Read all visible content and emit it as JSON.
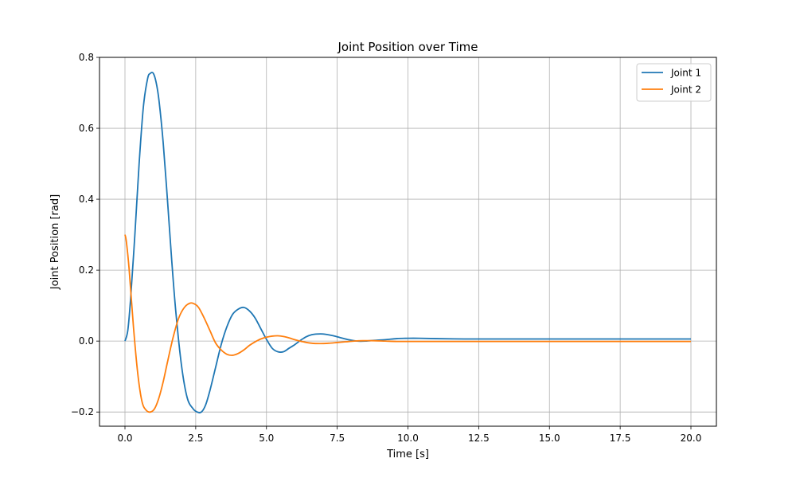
{
  "chart_data": {
    "type": "line",
    "title": "Joint Position over Time",
    "xlabel": "Time [s]",
    "ylabel": "Joint Position [rad]",
    "xlim": [
      -0.9,
      20.9
    ],
    "ylim": [
      -0.24,
      0.8
    ],
    "xticks": [
      0.0,
      2.5,
      5.0,
      7.5,
      10.0,
      12.5,
      15.0,
      17.5,
      20.0
    ],
    "xtick_labels": [
      "0.0",
      "2.5",
      "5.0",
      "7.5",
      "10.0",
      "12.5",
      "15.0",
      "17.5",
      "20.0"
    ],
    "yticks": [
      -0.2,
      0.0,
      0.2,
      0.4,
      0.6,
      0.8
    ],
    "ytick_labels": [
      "−0.2",
      "0.0",
      "0.2",
      "0.4",
      "0.6",
      "0.8"
    ],
    "grid": true,
    "legend_position": "top-right",
    "series": [
      {
        "name": "Joint 1",
        "color": "#1f77b4",
        "x": [
          0,
          0.1,
          0.2,
          0.35,
          0.5,
          0.65,
          0.8,
          0.9,
          1.0,
          1.1,
          1.2,
          1.35,
          1.5,
          1.65,
          1.8,
          2.0,
          2.2,
          2.4,
          2.55,
          2.7,
          2.85,
          3.0,
          3.2,
          3.4,
          3.6,
          3.8,
          4.0,
          4.2,
          4.4,
          4.6,
          4.8,
          5.0,
          5.2,
          5.4,
          5.6,
          5.8,
          6.0,
          6.2,
          6.4,
          6.6,
          6.8,
          7.0,
          7.3,
          7.6,
          7.9,
          8.2,
          8.5,
          8.8,
          9.2,
          9.6,
          10.0,
          10.4,
          11.0,
          12.0,
          13.0,
          14.0,
          16.0,
          18.0,
          20.0
        ],
        "y": [
          0.0,
          0.03,
          0.12,
          0.3,
          0.5,
          0.66,
          0.74,
          0.755,
          0.755,
          0.73,
          0.68,
          0.56,
          0.4,
          0.23,
          0.08,
          -0.07,
          -0.16,
          -0.19,
          -0.2,
          -0.2,
          -0.18,
          -0.14,
          -0.075,
          -0.01,
          0.04,
          0.075,
          0.09,
          0.095,
          0.085,
          0.065,
          0.035,
          0.005,
          -0.02,
          -0.03,
          -0.03,
          -0.02,
          -0.01,
          0.002,
          0.012,
          0.018,
          0.02,
          0.02,
          0.016,
          0.01,
          0.004,
          0.0,
          0.0,
          0.002,
          0.004,
          0.007,
          0.008,
          0.008,
          0.007,
          0.006,
          0.006,
          0.006,
          0.006,
          0.006,
          0.006
        ]
      },
      {
        "name": "Joint 2",
        "color": "#ff7f0e",
        "x": [
          0,
          0.05,
          0.15,
          0.3,
          0.45,
          0.6,
          0.75,
          0.9,
          1.05,
          1.2,
          1.35,
          1.5,
          1.7,
          1.9,
          2.1,
          2.3,
          2.45,
          2.6,
          2.8,
          3.0,
          3.2,
          3.4,
          3.6,
          3.8,
          4.0,
          4.2,
          4.4,
          4.6,
          4.8,
          5.0,
          5.2,
          5.4,
          5.6,
          5.8,
          6.0,
          6.3,
          6.6,
          6.9,
          7.2,
          7.5,
          7.8,
          8.1,
          8.4,
          8.8,
          9.2,
          9.6,
          10.0,
          11.0,
          12.0,
          14.0,
          16.0,
          18.0,
          20.0
        ],
        "y": [
          0.3,
          0.28,
          0.2,
          0.04,
          -0.09,
          -0.17,
          -0.195,
          -0.2,
          -0.19,
          -0.16,
          -0.115,
          -0.06,
          0.01,
          0.065,
          0.095,
          0.107,
          0.105,
          0.095,
          0.065,
          0.03,
          -0.005,
          -0.025,
          -0.037,
          -0.04,
          -0.035,
          -0.025,
          -0.012,
          -0.002,
          0.006,
          0.011,
          0.014,
          0.015,
          0.013,
          0.009,
          0.004,
          -0.002,
          -0.006,
          -0.007,
          -0.006,
          -0.004,
          -0.002,
          0.0,
          0.001,
          0.001,
          0.0,
          -0.001,
          -0.001,
          -0.001,
          -0.001,
          -0.001,
          -0.001,
          -0.001,
          -0.001
        ]
      }
    ]
  }
}
